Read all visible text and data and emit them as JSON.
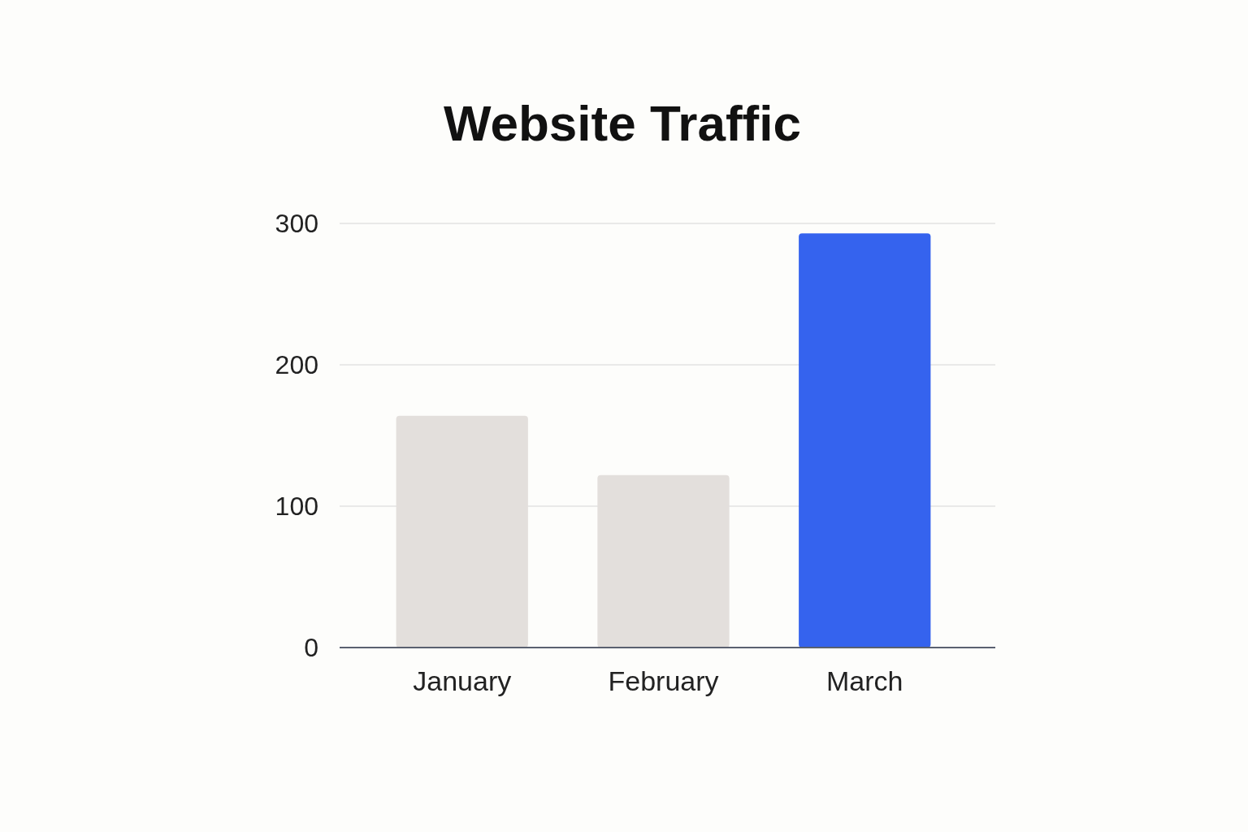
{
  "chart_data": {
    "type": "bar",
    "title": "Website Traffic",
    "categories": [
      "January",
      "February",
      "March"
    ],
    "values": [
      164,
      122,
      293
    ],
    "colors": [
      "#e3dfdc",
      "#e3dfdc",
      "#3563ee"
    ],
    "ylim": [
      0,
      300
    ],
    "yticks": [
      0,
      100,
      200,
      300
    ],
    "grid": "y"
  }
}
